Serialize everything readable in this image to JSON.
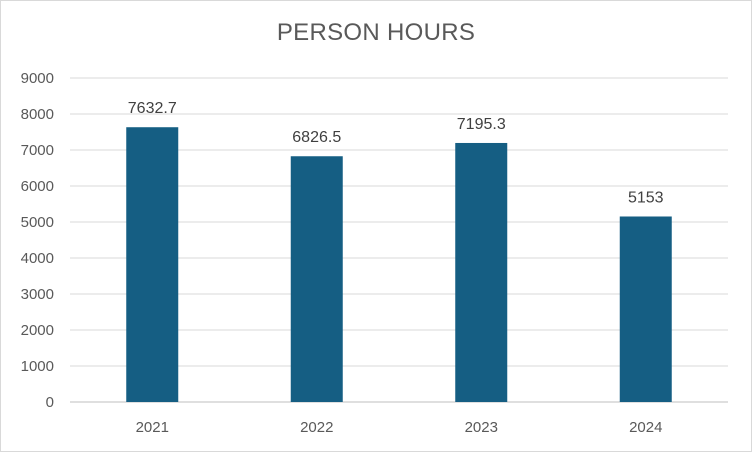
{
  "chart_data": {
    "type": "bar",
    "title": "PERSON HOURS",
    "xlabel": "",
    "ylabel": "",
    "categories": [
      "2021",
      "2022",
      "2023",
      "2024"
    ],
    "values": [
      7632.7,
      6826.5,
      7195.3,
      5153
    ],
    "data_labels": [
      "7632.7",
      "6826.5",
      "7195.3",
      "5153"
    ],
    "ylim": [
      0,
      9000
    ],
    "yticks": [
      0,
      1000,
      2000,
      3000,
      4000,
      5000,
      6000,
      7000,
      8000,
      9000
    ],
    "grid": true,
    "legend": "none",
    "bar_color": "#155e83",
    "grid_color": "#d9d9d9",
    "text_color": "#595959"
  }
}
